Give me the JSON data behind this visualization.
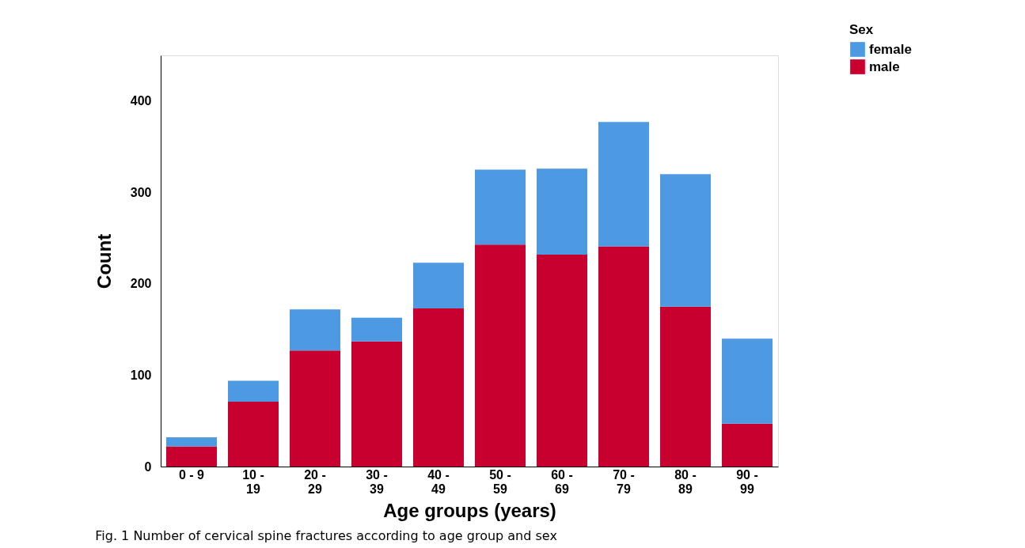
{
  "chart_data": {
    "type": "bar",
    "stacked": true,
    "xlabel": "Age groups (years)",
    "ylabel": "Count",
    "legend_title": "Sex",
    "legend": "top right",
    "categories": [
      "0 - 9",
      "10 - 19",
      "20 - 29",
      "30 - 39",
      "40 - 49",
      "50 - 59",
      "60 - 69",
      "70 - 79",
      "80 - 89",
      "90 - 99"
    ],
    "series": [
      {
        "name": "male",
        "color": "#c8002f",
        "values": [
          22,
          71,
          127,
          137,
          173,
          243,
          232,
          241,
          175,
          47
        ]
      },
      {
        "name": "female",
        "color": "#4d9ae3",
        "values": [
          10,
          23,
          45,
          26,
          50,
          82,
          94,
          136,
          145,
          93
        ]
      }
    ],
    "ylim": [
      0,
      450
    ],
    "yticks": [
      0,
      100,
      200,
      300,
      400
    ],
    "grid": false,
    "annotations": [
      "Fig. 1  Number of cervical spine fractures according to age group and sex"
    ]
  }
}
